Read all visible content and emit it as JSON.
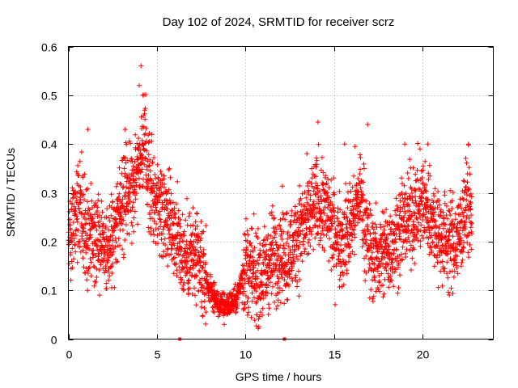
{
  "chart_data": {
    "type": "scatter",
    "title": "Day 102 of 2024, SRMTID for receiver scrz",
    "xlabel": "GPS time / hours",
    "ylabel": "SRMTID / TECUs",
    "xlim": [
      0,
      24
    ],
    "ylim": [
      0,
      0.6
    ],
    "x_ticks": [
      0,
      5,
      10,
      15,
      20
    ],
    "x_tick_labels": [
      "0",
      "5",
      "10",
      "15",
      "20"
    ],
    "y_ticks": [
      0,
      0.1,
      0.2,
      0.3,
      0.4,
      0.5,
      0.6
    ],
    "y_tick_labels": [
      "0",
      "0.1",
      "0.2",
      "0.3",
      "0.4",
      "0.5",
      "0.6"
    ],
    "grid": true,
    "marker": "plus",
    "color": "#ff0000",
    "series": [
      {
        "name": "SRMTID",
        "trend_points": [
          [
            0.0,
            0.2
          ],
          [
            0.2,
            0.24
          ],
          [
            0.5,
            0.28
          ],
          [
            1.0,
            0.22
          ],
          [
            1.5,
            0.2
          ],
          [
            2.0,
            0.2
          ],
          [
            2.5,
            0.2
          ],
          [
            3.0,
            0.28
          ],
          [
            3.5,
            0.31
          ],
          [
            4.0,
            0.37
          ],
          [
            4.3,
            0.4
          ],
          [
            4.6,
            0.31
          ],
          [
            5.0,
            0.28
          ],
          [
            5.5,
            0.27
          ],
          [
            6.0,
            0.22
          ],
          [
            6.5,
            0.17
          ],
          [
            7.0,
            0.17
          ],
          [
            7.5,
            0.14
          ],
          [
            8.0,
            0.1
          ],
          [
            8.5,
            0.07
          ],
          [
            9.0,
            0.07
          ],
          [
            9.5,
            0.08
          ],
          [
            10.0,
            0.16
          ],
          [
            10.5,
            0.12
          ],
          [
            11.0,
            0.13
          ],
          [
            11.5,
            0.17
          ],
          [
            12.0,
            0.18
          ],
          [
            12.5,
            0.17
          ],
          [
            13.0,
            0.22
          ],
          [
            13.5,
            0.24
          ],
          [
            14.0,
            0.28
          ],
          [
            14.5,
            0.27
          ],
          [
            15.0,
            0.22
          ],
          [
            15.5,
            0.2
          ],
          [
            16.0,
            0.24
          ],
          [
            16.5,
            0.3
          ],
          [
            17.0,
            0.18
          ],
          [
            17.5,
            0.17
          ],
          [
            18.0,
            0.18
          ],
          [
            18.5,
            0.21
          ],
          [
            19.0,
            0.24
          ],
          [
            19.5,
            0.26
          ],
          [
            20.0,
            0.28
          ],
          [
            20.5,
            0.25
          ],
          [
            21.0,
            0.21
          ],
          [
            21.5,
            0.2
          ],
          [
            22.0,
            0.2
          ],
          [
            22.5,
            0.28
          ],
          [
            22.8,
            0.25
          ]
        ],
        "extreme_points": [
          [
            4.1,
            0.56
          ],
          [
            4.0,
            0.52
          ],
          [
            4.2,
            0.5
          ],
          [
            14.1,
            0.445
          ],
          [
            16.9,
            0.44
          ],
          [
            15.6,
            0.4
          ],
          [
            22.6,
            0.4
          ],
          [
            19.0,
            0.4
          ],
          [
            20.3,
            0.4
          ],
          [
            8.8,
            0.03
          ],
          [
            1.1,
            0.43
          ],
          [
            3.2,
            0.43
          ]
        ]
      }
    ],
    "x_axis_markers": [
      6.3,
      12.2
    ]
  }
}
